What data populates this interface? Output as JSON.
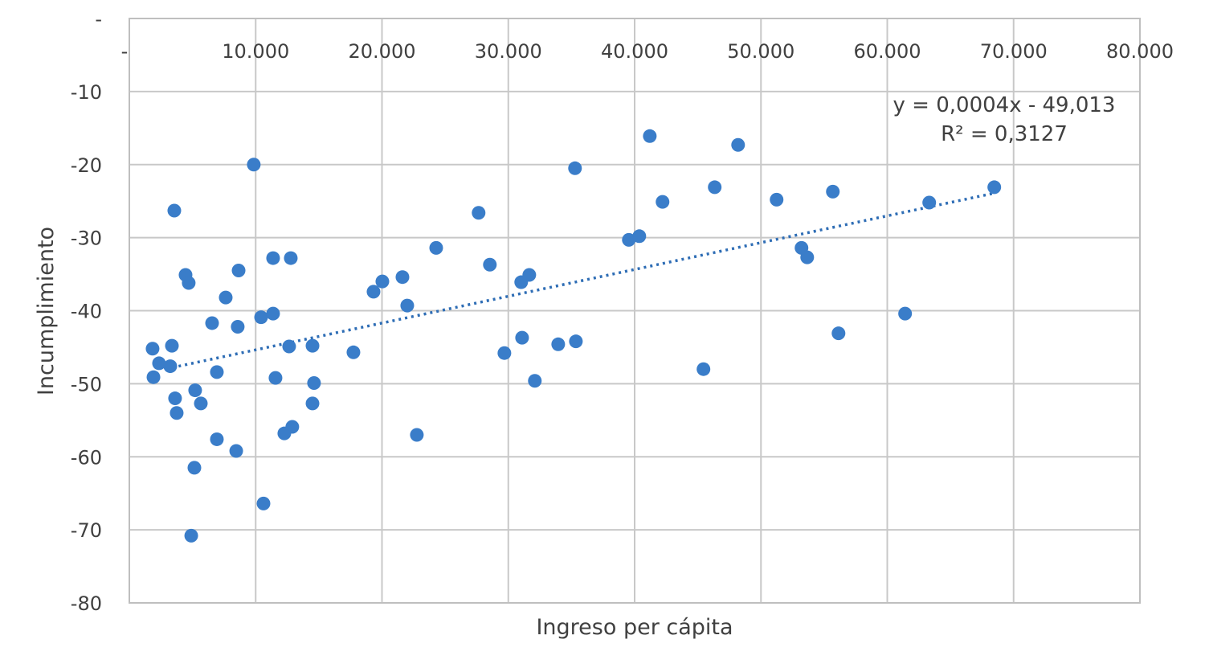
{
  "chart_data": {
    "type": "scatter",
    "title": "",
    "xlabel": "Ingreso per cápita",
    "ylabel": "Incumplimiento",
    "xlim": [
      0,
      80000
    ],
    "ylim": [
      -80,
      0
    ],
    "x_ticks": [
      0,
      10000,
      20000,
      30000,
      40000,
      50000,
      60000,
      70000,
      80000
    ],
    "x_tick_labels": [
      "-",
      "10.000",
      "20.000",
      "30.000",
      "40.000",
      "50.000",
      "60.000",
      "70.000",
      "80.000"
    ],
    "y_ticks": [
      0,
      -10,
      -20,
      -30,
      -40,
      -50,
      -60,
      -70,
      -80
    ],
    "y_tick_labels": [
      "-",
      "-10",
      "-20",
      "-30",
      "-40",
      "-50",
      "-60",
      "-70",
      "-80"
    ],
    "x_axis_position": "top",
    "grid": true,
    "marker_color": "#3a7dc9",
    "trendline_color": "#2e6db5",
    "trendline_style": "dotted",
    "trendline": [
      [
        3900,
        -47.6
      ],
      [
        68500,
        -23.9
      ]
    ],
    "equation": "y = 0,0004x - 49,013",
    "r_squared": "R² = 0,3127",
    "points": [
      [
        1840,
        -45.2
      ],
      [
        1910,
        -49.1
      ],
      [
        2350,
        -47.2
      ],
      [
        3240,
        -47.6
      ],
      [
        3370,
        -44.8
      ],
      [
        3560,
        -26.3
      ],
      [
        3620,
        -52.0
      ],
      [
        3750,
        -54.0
      ],
      [
        4450,
        -35.1
      ],
      [
        4700,
        -36.2
      ],
      [
        4900,
        -70.8
      ],
      [
        5150,
        -61.5
      ],
      [
        5210,
        -50.9
      ],
      [
        5660,
        -52.7
      ],
      [
        6550,
        -41.7
      ],
      [
        6930,
        -48.4
      ],
      [
        6930,
        -57.6
      ],
      [
        7630,
        -38.2
      ],
      [
        8460,
        -59.2
      ],
      [
        8580,
        -42.2
      ],
      [
        8650,
        -34.5
      ],
      [
        9850,
        -20.0
      ],
      [
        10430,
        -40.9
      ],
      [
        10620,
        -66.4
      ],
      [
        11380,
        -32.8
      ],
      [
        11380,
        -40.4
      ],
      [
        11570,
        -49.2
      ],
      [
        12270,
        -56.8
      ],
      [
        12650,
        -44.9
      ],
      [
        12780,
        -32.8
      ],
      [
        12900,
        -55.9
      ],
      [
        14500,
        -44.8
      ],
      [
        14500,
        -52.7
      ],
      [
        14620,
        -49.9
      ],
      [
        17740,
        -45.7
      ],
      [
        19330,
        -37.4
      ],
      [
        20030,
        -36.0
      ],
      [
        21620,
        -35.4
      ],
      [
        22000,
        -39.3
      ],
      [
        22760,
        -57.0
      ],
      [
        24290,
        -31.4
      ],
      [
        27650,
        -26.6
      ],
      [
        28540,
        -33.7
      ],
      [
        29690,
        -45.8
      ],
      [
        31020,
        -36.1
      ],
      [
        31090,
        -43.7
      ],
      [
        31660,
        -35.1
      ],
      [
        32100,
        -49.6
      ],
      [
        33950,
        -44.6
      ],
      [
        35280,
        -20.5
      ],
      [
        35350,
        -44.2
      ],
      [
        39540,
        -30.3
      ],
      [
        40370,
        -29.8
      ],
      [
        41200,
        -16.1
      ],
      [
        42210,
        -25.1
      ],
      [
        45450,
        -48.0
      ],
      [
        46340,
        -23.1
      ],
      [
        48190,
        -17.3
      ],
      [
        51240,
        -24.8
      ],
      [
        53210,
        -31.4
      ],
      [
        53660,
        -32.7
      ],
      [
        55690,
        -23.7
      ],
      [
        56140,
        -43.1
      ],
      [
        61410,
        -40.4
      ],
      [
        63320,
        -25.2
      ],
      [
        68470,
        -23.1
      ]
    ]
  }
}
